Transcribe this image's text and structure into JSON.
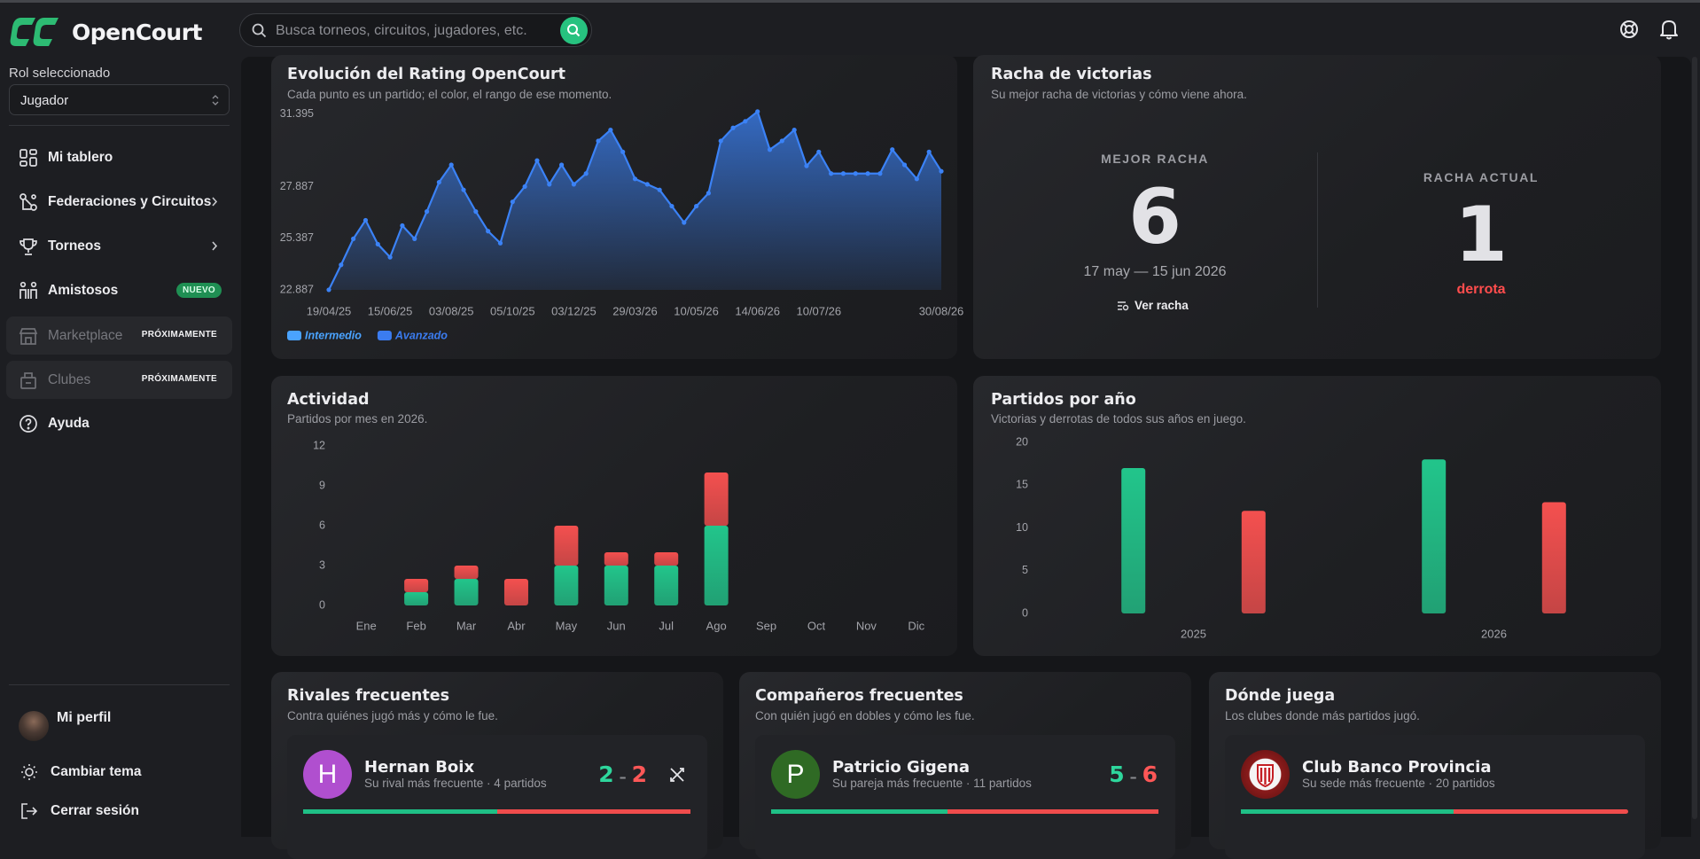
{
  "header": {
    "brand": "OpenCourt",
    "search_placeholder": "Busca torneos, circuitos, jugadores, etc."
  },
  "sidebar": {
    "role_label": "Rol seleccionado",
    "role": "Jugador",
    "nav": [
      {
        "label": "Mi tablero"
      },
      {
        "label": "Federaciones y Circuitos"
      },
      {
        "label": "Torneos"
      },
      {
        "label": "Amistosos",
        "badge": "NUEVO"
      },
      {
        "label": "Marketplace",
        "badge": "PRÓXIMAMENTE"
      },
      {
        "label": "Clubes",
        "badge": "PRÓXIMAMENTE"
      },
      {
        "label": "Ayuda"
      }
    ],
    "profile": "Mi perfil",
    "theme": "Cambiar tema",
    "logout": "Cerrar sesión"
  },
  "chart_data": [
    {
      "type": "line",
      "title": "Evolución del Rating OpenCourt",
      "subtitle": "Cada punto es un partido; el color, el rango de ese momento.",
      "categories": [
        "19/04/25",
        null,
        null,
        null,
        null,
        "15/06/25",
        null,
        null,
        null,
        null,
        "03/08/25",
        null,
        null,
        null,
        null,
        "05/10/25",
        null,
        null,
        null,
        null,
        "03/12/25",
        null,
        null,
        null,
        null,
        "29/03/26",
        null,
        null,
        null,
        null,
        "10/05/26",
        null,
        null,
        null,
        null,
        "14/06/26",
        null,
        null,
        null,
        null,
        "10/07/26",
        null,
        null,
        null,
        null,
        null,
        null,
        null,
        null,
        null,
        "30/08/26"
      ],
      "series": [
        {
          "color": "#3b82f6",
          "values": [
            22.89,
            24.1,
            25.36,
            26.26,
            25.1,
            24.47,
            26.0,
            25.36,
            26.68,
            28.1,
            28.94,
            27.73,
            26.68,
            25.73,
            25.15,
            27.15,
            27.89,
            29.15,
            28.0,
            28.94,
            28.0,
            28.52,
            30.1,
            30.63,
            29.57,
            28.26,
            28.0,
            27.73,
            26.94,
            26.15,
            26.94,
            27.57,
            30.1,
            30.73,
            31.05,
            31.52,
            29.68,
            30.1,
            30.63,
            28.89,
            29.57,
            28.52,
            28.52,
            28.52,
            28.52,
            28.52,
            29.68,
            28.94,
            28.26,
            29.57,
            28.63
          ]
        }
      ],
      "ylim": [
        22.887,
        31.6
      ],
      "yticks": [
        22.887,
        25.387,
        27.887,
        31.395
      ],
      "legend": [
        {
          "name": "Intermedio",
          "color": "#4aa3ff"
        },
        {
          "name": "Avanzado",
          "color": "#3b7cf0"
        }
      ]
    },
    {
      "type": "bar",
      "stacked": true,
      "title": "Actividad",
      "subtitle": "Partidos por mes en 2026.",
      "categories": [
        "Ene",
        "Feb",
        "Mar",
        "Abr",
        "May",
        "Jun",
        "Jul",
        "Ago",
        "Sep",
        "Oct",
        "Nov",
        "Dic"
      ],
      "series": [
        {
          "color": "#22c58b",
          "values": [
            0,
            1,
            2,
            0,
            3,
            3,
            3,
            6,
            0,
            0,
            0,
            0
          ]
        },
        {
          "color": "#f4504f",
          "values": [
            0,
            1,
            1,
            2,
            3,
            1,
            1,
            4,
            0,
            0,
            0,
            0
          ]
        }
      ],
      "ylim": [
        0,
        12
      ],
      "yticks": [
        0,
        3,
        6,
        9,
        12
      ]
    },
    {
      "type": "bar",
      "stacked": false,
      "title": "Partidos por año",
      "subtitle": "Victorias y derrotas de todos sus años en juego.",
      "categories": [
        "2025",
        "2026"
      ],
      "series": [
        {
          "color": "#22c58b",
          "values": [
            17,
            18
          ]
        },
        {
          "color": "#f4504f",
          "values": [
            12,
            13
          ]
        }
      ],
      "ylim": [
        0,
        20
      ],
      "yticks": [
        0,
        5,
        10,
        15,
        20
      ]
    }
  ],
  "streak": {
    "title": "Racha de victorias",
    "subtitle": "Su mejor racha de victorias y cómo viene ahora.",
    "best": {
      "label": "MEJOR RACHA",
      "value": 6,
      "range": "17 may — 15 jun 2026",
      "link": "Ver racha"
    },
    "current": {
      "label": "RACHA ACTUAL",
      "value": 1,
      "result": "derrota"
    }
  },
  "cards": [
    {
      "title": "Rivales frecuentes",
      "subtitle": "Contra quiénes jugó más y cómo le fue.",
      "item": {
        "initial": "H",
        "name": "Hernan Boix",
        "detail": "Su rival más frecuente · 4 partidos",
        "won": 2,
        "sep": "–",
        "lost": 2
      }
    },
    {
      "title": "Compañeros frecuentes",
      "subtitle": "Con quién jugó en dobles y cómo les fue.",
      "item": {
        "initial": "P",
        "name": "Patricio Gigena",
        "detail": "Su pareja más frecuente · 11 partidos",
        "won": 5,
        "sep": "–",
        "lost": 6
      }
    },
    {
      "title": "Dónde juega",
      "subtitle": "Los clubes donde más partidos jugó.",
      "item": {
        "name": "Club Banco Provincia",
        "detail": "Su sede más frecuente · 20 partidos"
      }
    }
  ]
}
